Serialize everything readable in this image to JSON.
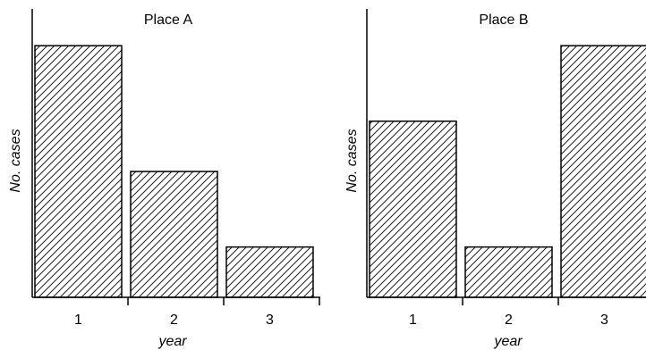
{
  "chart_data": [
    {
      "type": "bar",
      "title": "Place A",
      "xlabel": "year",
      "ylabel": "No. cases",
      "categories": [
        "1",
        "2",
        "3"
      ],
      "values": [
        10,
        5,
        2
      ],
      "ylim": [
        0,
        11
      ]
    },
    {
      "type": "bar",
      "title": "Place B",
      "xlabel": "year",
      "ylabel": "No. cases",
      "categories": [
        "1",
        "2",
        "3"
      ],
      "values": [
        7,
        2,
        10
      ],
      "ylim": [
        0,
        11
      ]
    }
  ]
}
